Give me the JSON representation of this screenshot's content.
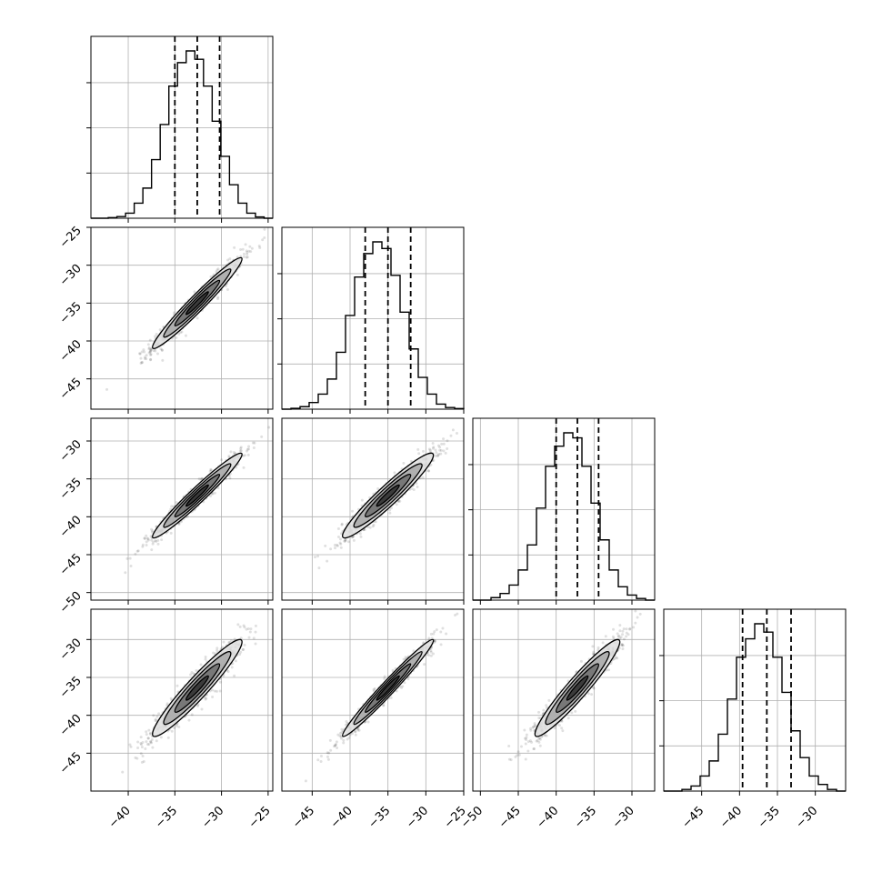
{
  "chart_data": {
    "type": "corner",
    "n_params": 4,
    "grid": true,
    "quantile_lines": "dashed",
    "params": [
      {
        "range": [
          -44,
          -24.5
        ],
        "hist": [
          0,
          0,
          0.004,
          0.01,
          0.03,
          0.09,
          0.18,
          0.35,
          0.56,
          0.79,
          0.93,
          1.0,
          0.95,
          0.79,
          0.58,
          0.37,
          0.2,
          0.09,
          0.03,
          0.008,
          0
        ],
        "quantiles": [
          -35.0,
          -32.6,
          -30.2
        ]
      },
      {
        "range": [
          -49,
          -25
        ],
        "hist": [
          0,
          0.005,
          0.015,
          0.04,
          0.09,
          0.18,
          0.34,
          0.56,
          0.79,
          0.93,
          1.0,
          0.96,
          0.8,
          0.58,
          0.36,
          0.19,
          0.09,
          0.03,
          0.01,
          0.004
        ],
        "quantiles": [
          -38.0,
          -35.0,
          -32.0
        ]
      },
      {
        "range": [
          -51,
          -27
        ],
        "hist": [
          0,
          0,
          0.015,
          0.04,
          0.09,
          0.18,
          0.33,
          0.55,
          0.8,
          0.92,
          1.0,
          0.97,
          0.8,
          0.58,
          0.36,
          0.18,
          0.08,
          0.03,
          0.01,
          0
        ],
        "quantiles": [
          -40.0,
          -37.2,
          -34.4
        ]
      },
      {
        "range": [
          -50,
          -26
        ],
        "hist": [
          0,
          0,
          0.01,
          0.03,
          0.09,
          0.18,
          0.34,
          0.55,
          0.8,
          0.91,
          1.0,
          0.95,
          0.8,
          0.59,
          0.36,
          0.2,
          0.09,
          0.04,
          0.01,
          0
        ],
        "quantiles": [
          -39.6,
          -36.4,
          -33.2
        ]
      }
    ],
    "x_tick_labels": [
      [
        "−40",
        "−35",
        "−30",
        "−25"
      ],
      [
        "−45",
        "−40",
        "−35",
        "−30",
        "−25"
      ],
      [
        "−50",
        "−45",
        "−40",
        "−35",
        "−30"
      ],
      [
        "−45",
        "−40",
        "−35",
        "−30"
      ]
    ],
    "x_tick_values": [
      [
        -40,
        -35,
        -30,
        -25
      ],
      [
        -45,
        -40,
        -35,
        -30,
        -25
      ],
      [
        -50,
        -45,
        -40,
        -35,
        -30
      ],
      [
        -45,
        -40,
        -35,
        -30
      ]
    ],
    "y_tick_labels": [
      [],
      [
        "−25",
        "−30",
        "−35",
        "−40",
        "−45"
      ],
      [
        "−30",
        "−35",
        "−40",
        "−45",
        "−50"
      ],
      [
        "−30",
        "−35",
        "−40",
        "−45"
      ]
    ],
    "y_tick_values": [
      [],
      [
        -25,
        -30,
        -35,
        -40,
        -45
      ],
      [
        -30,
        -35,
        -40,
        -45,
        -50
      ],
      [
        -30,
        -35,
        -40,
        -45
      ]
    ],
    "pairs": [
      {
        "row": 1,
        "col": 0,
        "center": [
          -32.6,
          -35.0
        ],
        "sigma": [
          2.4,
          3.0
        ],
        "rho": 0.97
      },
      {
        "row": 2,
        "col": 0,
        "center": [
          -32.6,
          -37.2
        ],
        "sigma": [
          2.4,
          2.8
        ],
        "rho": 0.97
      },
      {
        "row": 2,
        "col": 1,
        "center": [
          -35.0,
          -37.2
        ],
        "sigma": [
          3.0,
          2.8
        ],
        "rho": 0.95
      },
      {
        "row": 3,
        "col": 0,
        "center": [
          -32.6,
          -36.4
        ],
        "sigma": [
          2.4,
          3.2
        ],
        "rho": 0.95
      },
      {
        "row": 3,
        "col": 1,
        "center": [
          -35.0,
          -36.4
        ],
        "sigma": [
          3.0,
          3.2
        ],
        "rho": 0.98
      },
      {
        "row": 3,
        "col": 2,
        "center": [
          -37.2,
          -36.4
        ],
        "sigma": [
          2.8,
          3.2
        ],
        "rho": 0.95
      }
    ],
    "colors": {
      "line": "#000000",
      "grid": "#b0b0b0",
      "points": "#000000",
      "fill_light": "#e0e0e0",
      "fill_mid": "#a8a8a8",
      "fill_dark": "#6e6e6e",
      "fill_core": "#303030"
    }
  }
}
